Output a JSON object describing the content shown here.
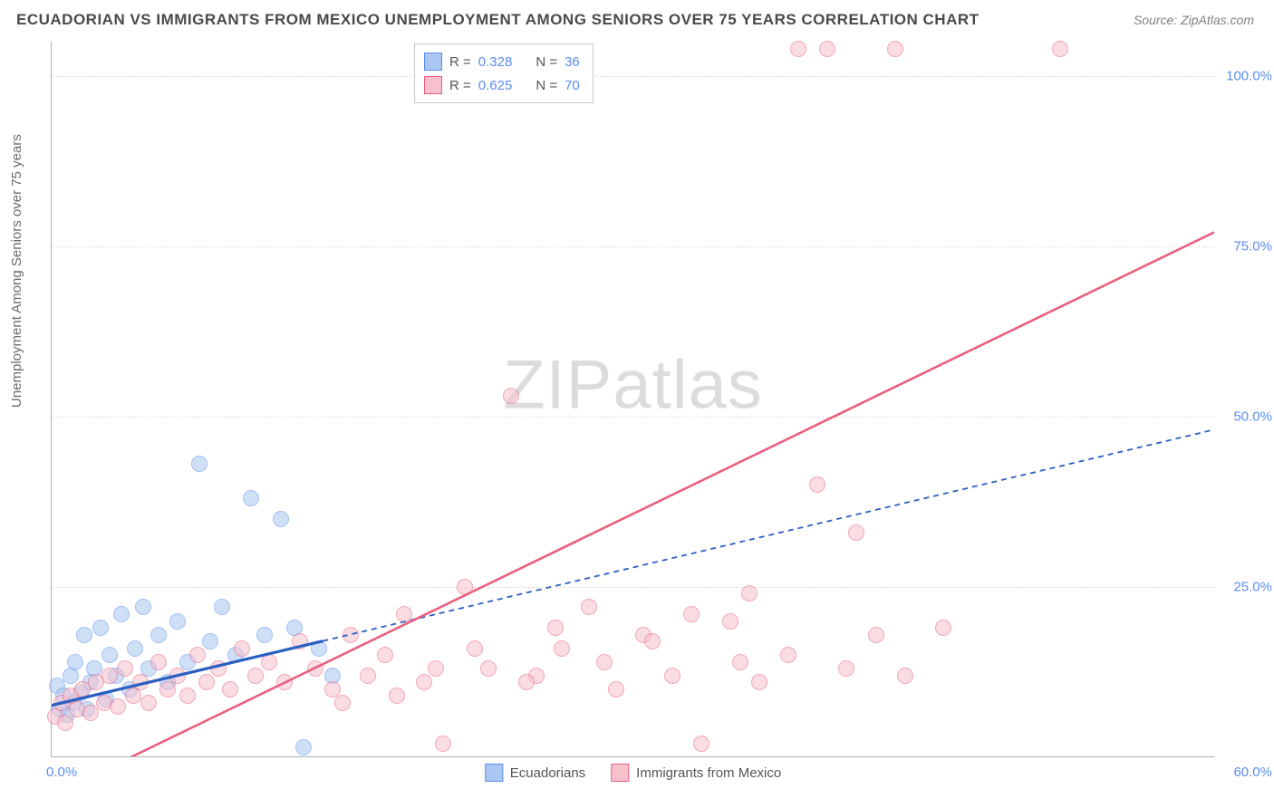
{
  "title": "ECUADORIAN VS IMMIGRANTS FROM MEXICO UNEMPLOYMENT AMONG SENIORS OVER 75 YEARS CORRELATION CHART",
  "source": "Source: ZipAtlas.com",
  "ylabel": "Unemployment Among Seniors over 75 years",
  "watermark_a": "ZIP",
  "watermark_b": "atlas",
  "chart": {
    "type": "scatter",
    "xlim": [
      0,
      60
    ],
    "ylim": [
      0,
      105
    ],
    "xticks": [
      {
        "v": 0,
        "label": "0.0%"
      },
      {
        "v": 60,
        "label": "60.0%"
      }
    ],
    "yticks": [
      {
        "v": 25,
        "label": "25.0%"
      },
      {
        "v": 50,
        "label": "50.0%"
      },
      {
        "v": 75,
        "label": "75.0%"
      },
      {
        "v": 100,
        "label": "100.0%"
      }
    ],
    "background_color": "#ffffff",
    "grid_color": "#e2e2e2",
    "axis_color": "#b0b0b0",
    "tick_color": "#5b8def",
    "marker_radius": 9,
    "marker_opacity": 0.55,
    "series": [
      {
        "name": "Ecuadorians",
        "fill": "#a9c7f0",
        "stroke": "#5b8def",
        "line_color": "#2b5fc1",
        "line_dash": "6 5",
        "line_width": 1.8,
        "solid_until_x": 14,
        "solid_width": 3.2,
        "R": "0.328",
        "N": "36",
        "reg": {
          "x1": 0,
          "y1": 7.5,
          "x2": 60,
          "y2": 48
        },
        "points": [
          [
            0.3,
            10.5
          ],
          [
            0.4,
            7
          ],
          [
            0.6,
            9
          ],
          [
            0.8,
            6.3
          ],
          [
            1.0,
            12
          ],
          [
            1.1,
            8
          ],
          [
            1.2,
            14
          ],
          [
            1.5,
            9.5
          ],
          [
            1.7,
            18
          ],
          [
            1.8,
            7
          ],
          [
            2.0,
            11
          ],
          [
            2.2,
            13
          ],
          [
            2.5,
            19
          ],
          [
            2.8,
            8.5
          ],
          [
            3.0,
            15
          ],
          [
            3.3,
            12
          ],
          [
            3.6,
            21
          ],
          [
            4.0,
            10
          ],
          [
            4.3,
            16
          ],
          [
            4.7,
            22
          ],
          [
            5.0,
            13
          ],
          [
            5.5,
            18
          ],
          [
            6.0,
            11
          ],
          [
            6.5,
            20
          ],
          [
            7.0,
            14
          ],
          [
            7.6,
            43
          ],
          [
            8.2,
            17
          ],
          [
            8.8,
            22
          ],
          [
            9.5,
            15
          ],
          [
            10.3,
            38
          ],
          [
            11.0,
            18
          ],
          [
            11.8,
            35
          ],
          [
            12.5,
            19
          ],
          [
            13.0,
            1.5
          ],
          [
            13.8,
            16
          ],
          [
            14.5,
            12
          ]
        ]
      },
      {
        "name": "Immigrants from Mexico",
        "fill": "#f6c1cd",
        "stroke": "#e9607f",
        "line_color": "#e9607f",
        "line_dash": "none",
        "line_width": 2.6,
        "R": "0.625",
        "N": "70",
        "reg": {
          "x1": 2,
          "y1": -3,
          "x2": 60,
          "y2": 77
        },
        "points": [
          [
            0.2,
            6
          ],
          [
            0.5,
            8
          ],
          [
            0.7,
            5
          ],
          [
            1.0,
            9
          ],
          [
            1.3,
            7
          ],
          [
            1.6,
            10
          ],
          [
            2.0,
            6.5
          ],
          [
            2.3,
            11
          ],
          [
            2.7,
            8
          ],
          [
            3.0,
            12
          ],
          [
            3.4,
            7.5
          ],
          [
            3.8,
            13
          ],
          [
            4.2,
            9
          ],
          [
            4.6,
            11
          ],
          [
            5.0,
            8
          ],
          [
            5.5,
            14
          ],
          [
            6.0,
            10
          ],
          [
            6.5,
            12
          ],
          [
            7.0,
            9
          ],
          [
            7.5,
            15
          ],
          [
            8.0,
            11
          ],
          [
            8.6,
            13
          ],
          [
            9.2,
            10
          ],
          [
            9.8,
            16
          ],
          [
            10.5,
            12
          ],
          [
            11.2,
            14
          ],
          [
            12.0,
            11
          ],
          [
            12.8,
            17
          ],
          [
            13.6,
            13
          ],
          [
            14.5,
            10
          ],
          [
            15.4,
            18
          ],
          [
            16.3,
            12
          ],
          [
            17.2,
            15
          ],
          [
            18.2,
            21
          ],
          [
            19.2,
            11
          ],
          [
            20.2,
            2
          ],
          [
            21.3,
            25
          ],
          [
            22.5,
            13
          ],
          [
            23.7,
            53
          ],
          [
            25.0,
            12
          ],
          [
            26.3,
            16
          ],
          [
            27.7,
            22
          ],
          [
            29.1,
            10
          ],
          [
            30.5,
            18
          ],
          [
            32.0,
            12
          ],
          [
            33.5,
            2
          ],
          [
            35.0,
            20
          ],
          [
            36.5,
            11
          ],
          [
            38.0,
            15
          ],
          [
            39.5,
            40
          ],
          [
            41.0,
            13
          ],
          [
            42.5,
            18
          ],
          [
            38.5,
            104
          ],
          [
            40.0,
            104
          ],
          [
            43.5,
            104
          ],
          [
            52.0,
            104
          ],
          [
            33.0,
            21
          ],
          [
            35.5,
            14
          ],
          [
            41.5,
            33
          ],
          [
            44.0,
            12
          ],
          [
            46.0,
            19
          ],
          [
            36.0,
            24
          ],
          [
            28.5,
            14
          ],
          [
            31.0,
            17
          ],
          [
            24.5,
            11
          ],
          [
            26.0,
            19
          ],
          [
            17.8,
            9
          ],
          [
            19.8,
            13
          ],
          [
            21.8,
            16
          ],
          [
            15.0,
            8
          ]
        ]
      }
    ]
  },
  "legend": {
    "R_label": "R =",
    "N_label": "N ="
  }
}
